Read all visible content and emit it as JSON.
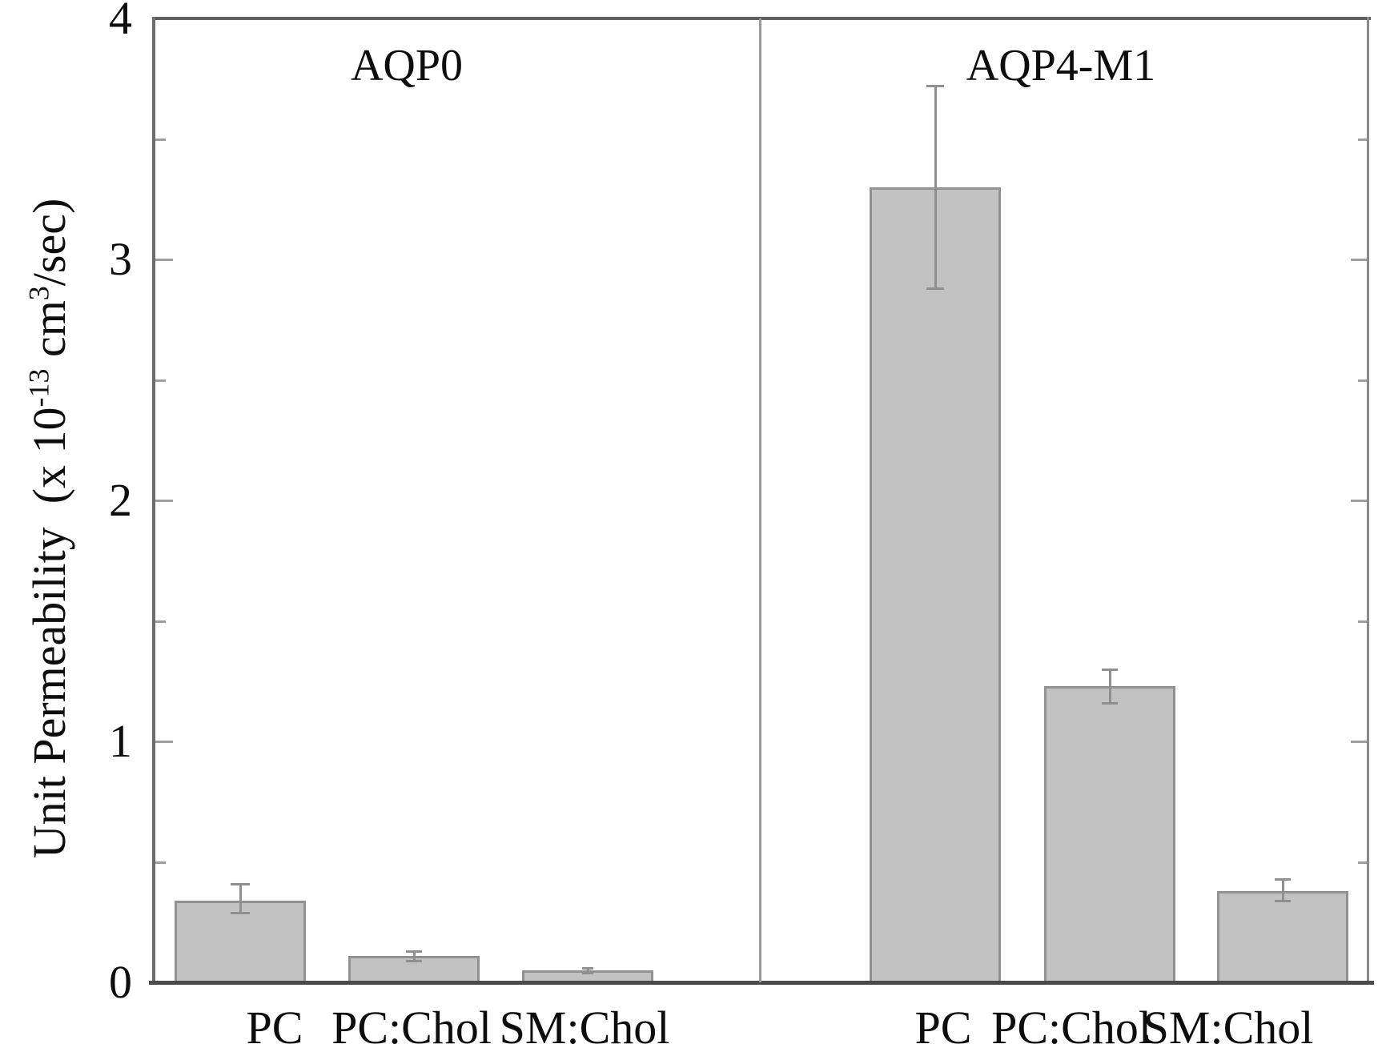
{
  "figure_background": "#ffffff",
  "chart_data": {
    "type": "bar",
    "title": "",
    "ylabel": "Unit Permeability (x 10^-13 cm^3/sec)",
    "ylabel_parts": [
      {
        "text": "Unit Permeability  (x 10"
      },
      {
        "sup": "-13"
      },
      {
        "text": " cm"
      },
      {
        "sup": "3"
      },
      {
        "text": "/sec)"
      }
    ],
    "ylim": [
      0,
      4
    ],
    "y_major_ticks": [
      0,
      1,
      2,
      3,
      4
    ],
    "y_major_tick_labels": [
      "0",
      "1",
      "2",
      "3",
      "4"
    ],
    "y_minor_ticks": [
      0.5,
      1.5,
      2.5,
      3.5
    ],
    "grid": "off",
    "legend": "none",
    "bar_fill_color": "#c2c2c2",
    "bar_border_color": "#919191",
    "error_bar_color": "#8f8f8f",
    "panels": [
      {
        "label": "AQP0",
        "categories": [
          "PC",
          "PC:Chol",
          "SM:Chol"
        ],
        "values": [
          0.34,
          0.11,
          0.05
        ],
        "error_low": [
          0.29,
          0.09,
          0.04
        ],
        "error_high": [
          0.41,
          0.13,
          0.06
        ]
      },
      {
        "label": "AQP4-M1",
        "categories": [
          "PC",
          "PC:Chol",
          "SM:Chol"
        ],
        "values": [
          3.3,
          1.23,
          0.38
        ],
        "error_low": [
          2.88,
          1.16,
          0.34
        ],
        "error_high": [
          3.72,
          1.3,
          0.43
        ]
      }
    ]
  }
}
